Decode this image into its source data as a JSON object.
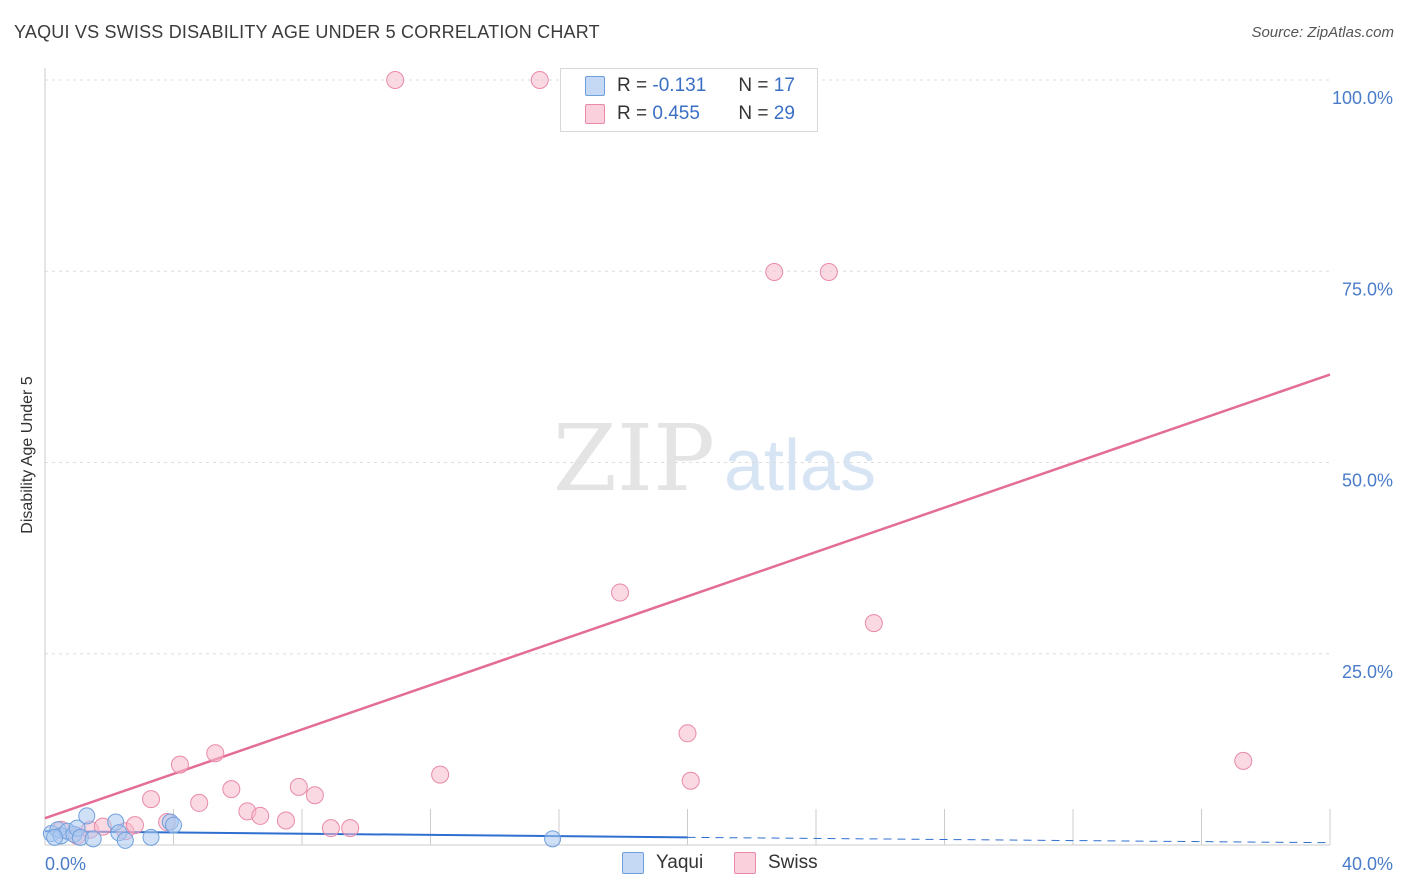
{
  "title": "YAQUI VS SWISS DISABILITY AGE UNDER 5 CORRELATION CHART",
  "source": "Source: ZipAtlas.com",
  "watermark": {
    "part1": "ZIP",
    "part2": "atlas"
  },
  "legend": {
    "rows": [
      {
        "r_label": "R =",
        "r_value": "-0.131",
        "n_label": "N =",
        "n_value": "17"
      },
      {
        "r_label": "R =",
        "r_value": "0.455",
        "n_label": "N =",
        "n_value": "29"
      }
    ]
  },
  "colors": {
    "yaqui_fill": "#a9c8f0",
    "yaqui_stroke": "#6f9fdc",
    "yaqui_line": "#2f6fcf",
    "swiss_fill": "#f7b9cc",
    "swiss_stroke": "#e98aa8",
    "swiss_line": "#e46d95",
    "tick": "#4a7cc9",
    "grid": "#dddddd"
  },
  "chart_data": {
    "type": "scatter",
    "title": "YAQUI VS SWISS DISABILITY AGE UNDER 5 CORRELATION CHART",
    "xlabel": "",
    "ylabel": "Disability Age Under 5",
    "xlim": [
      0,
      40
    ],
    "ylim": [
      0,
      100
    ],
    "x_tick_labels": [
      "0.0%",
      "40.0%"
    ],
    "y_ticks": [
      25,
      50,
      75,
      100
    ],
    "y_tick_labels": [
      "25.0%",
      "50.0%",
      "75.0%",
      "100.0%"
    ],
    "grid": true,
    "legend_position": "top-center",
    "series": [
      {
        "name": "Yaqui",
        "points": [
          [
            0.2,
            1.5
          ],
          [
            0.4,
            2.0
          ],
          [
            0.5,
            1.2
          ],
          [
            0.7,
            1.8
          ],
          [
            0.9,
            1.4
          ],
          [
            1.0,
            2.2
          ],
          [
            1.1,
            1.0
          ],
          [
            1.3,
            3.8
          ],
          [
            1.5,
            0.8
          ],
          [
            2.2,
            3.0
          ],
          [
            2.3,
            1.6
          ],
          [
            2.5,
            0.6
          ],
          [
            3.3,
            1.0
          ],
          [
            3.9,
            3.0
          ],
          [
            4.0,
            2.6
          ],
          [
            15.8,
            0.8
          ],
          [
            0.3,
            1.0
          ]
        ],
        "trend": {
          "x0": 0,
          "y0": 1.8,
          "x1": 20,
          "y1": 1.0,
          "dash_to": 40,
          "dash_y": 0.3
        }
      },
      {
        "name": "Swiss",
        "points": [
          [
            0.5,
            2.0
          ],
          [
            1.0,
            1.2
          ],
          [
            1.4,
            2.0
          ],
          [
            1.8,
            2.4
          ],
          [
            2.5,
            1.8
          ],
          [
            2.8,
            2.6
          ],
          [
            3.3,
            6.0
          ],
          [
            3.8,
            3.0
          ],
          [
            4.2,
            10.5
          ],
          [
            4.8,
            5.5
          ],
          [
            5.3,
            12.0
          ],
          [
            5.8,
            7.3
          ],
          [
            6.3,
            4.4
          ],
          [
            6.7,
            3.8
          ],
          [
            7.5,
            3.2
          ],
          [
            7.9,
            7.6
          ],
          [
            8.4,
            6.5
          ],
          [
            8.9,
            2.2
          ],
          [
            9.5,
            2.2
          ],
          [
            10.9,
            100.0
          ],
          [
            12.3,
            9.2
          ],
          [
            15.4,
            100.0
          ],
          [
            17.9,
            33.0
          ],
          [
            20.0,
            14.6
          ],
          [
            20.1,
            8.4
          ],
          [
            22.7,
            74.9
          ],
          [
            24.4,
            74.9
          ],
          [
            25.8,
            29.0
          ],
          [
            37.3,
            11.0
          ]
        ],
        "trend": {
          "x0": 0,
          "y0": 3.5,
          "x1": 40,
          "y1": 61.5
        }
      }
    ]
  }
}
